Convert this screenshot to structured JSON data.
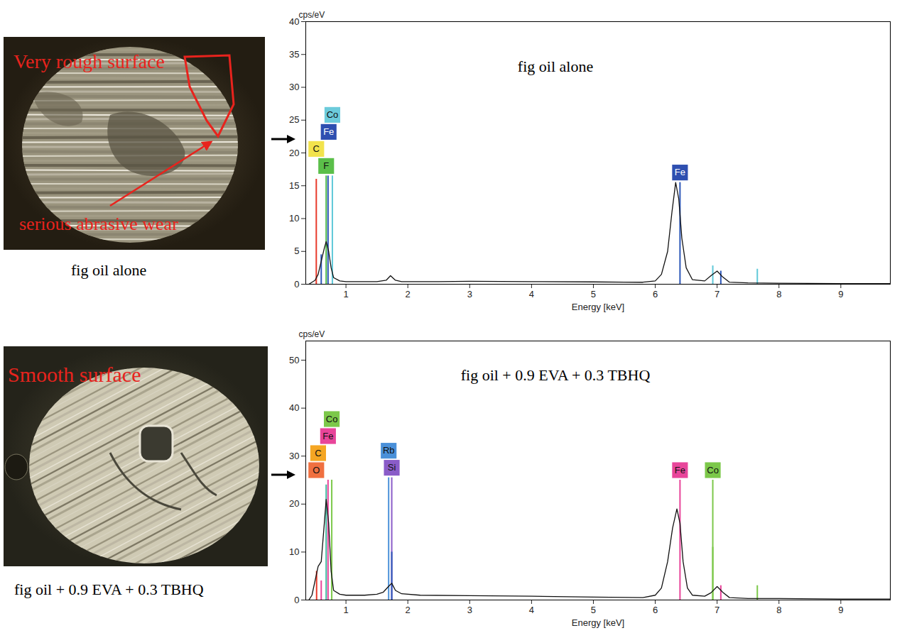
{
  "chart_data": [
    {
      "type": "line",
      "title": "fig oil alone",
      "x_label": "Energy [keV]",
      "y_label": "cps/eV",
      "xlim": [
        0.35,
        9.8
      ],
      "xticks": [
        1,
        2,
        3,
        4,
        5,
        6,
        7,
        8,
        9
      ],
      "ylim": [
        0,
        40
      ],
      "yticks": [
        0,
        5,
        10,
        15,
        20,
        25,
        30,
        35,
        40
      ],
      "grid": false,
      "x": [
        0.4,
        0.45,
        0.5,
        0.55,
        0.6,
        0.65,
        0.68,
        0.72,
        0.76,
        0.8,
        0.9,
        1.0,
        1.2,
        1.5,
        1.65,
        1.72,
        1.8,
        1.9,
        2.5,
        3.0,
        4.0,
        5.0,
        5.5,
        5.8,
        6.0,
        6.1,
        6.2,
        6.27,
        6.33,
        6.38,
        6.43,
        6.5,
        6.6,
        6.8,
        6.9,
        7.0,
        7.08,
        7.2,
        7.5,
        8.0,
        9.0,
        9.8
      ],
      "series": [
        {
          "color": "#111111",
          "values": [
            0,
            0.3,
            0.6,
            1.5,
            3.5,
            5.5,
            6.5,
            5,
            2.5,
            1,
            0.5,
            0.4,
            0.4,
            0.4,
            0.6,
            1.3,
            0.6,
            0.4,
            0.4,
            0.45,
            0.4,
            0.35,
            0.3,
            0.3,
            0.5,
            1.5,
            5,
            11,
            15.5,
            13,
            7,
            2.5,
            0.7,
            0.5,
            1.3,
            2,
            1.2,
            0.3,
            0.2,
            0.15,
            0.1,
            0.1
          ]
        }
      ],
      "element_lines": {
        "energy": [
          0.52,
          0.6,
          0.68,
          0.71,
          0.78,
          6.4,
          6.93,
          7.06,
          7.65
        ],
        "height": [
          16,
          4.5,
          16.5,
          16.5,
          16.5,
          15.5,
          2.8,
          2,
          2.3
        ],
        "colors": [
          "#e8392a",
          "#2e58b8",
          "#4bb84a",
          "#2e58b8",
          "#5fc8d8",
          "#2e58b8",
          "#5fc8d8",
          "#2e58b8",
          "#5fc8d8"
        ]
      },
      "element_labels": [
        {
          "label": "F",
          "energy": 0.68,
          "color": "#5bbf4a"
        },
        {
          "label": "C",
          "energy": 0.52,
          "color": "#f2e34c"
        },
        {
          "label": "Fe",
          "energy": 0.72,
          "color": "#2e4fb0"
        },
        {
          "label": "Co",
          "energy": 0.78,
          "color": "#6ccbdb"
        },
        {
          "label": "Fe",
          "energy": 6.4,
          "color": "#2e4fb0"
        }
      ]
    },
    {
      "type": "line",
      "title": "fig oil + 0.9 EVA + 0.3 TBHQ",
      "x_label": "Energy [keV]",
      "y_label": "cps/eV",
      "xlim": [
        0.35,
        9.8
      ],
      "xticks": [
        1,
        2,
        3,
        4,
        5,
        6,
        7,
        8,
        9
      ],
      "ylim": [
        0,
        54
      ],
      "yticks": [
        0,
        10,
        20,
        30,
        40,
        50
      ],
      "grid": false,
      "x": [
        0.4,
        0.45,
        0.5,
        0.55,
        0.6,
        0.65,
        0.68,
        0.72,
        0.76,
        0.8,
        0.9,
        1.0,
        1.3,
        1.5,
        1.6,
        1.7,
        1.74,
        1.8,
        1.9,
        2.2,
        3.0,
        4.0,
        5.0,
        5.8,
        6.0,
        6.1,
        6.2,
        6.28,
        6.35,
        6.4,
        6.45,
        6.52,
        6.6,
        6.8,
        6.9,
        7.0,
        7.1,
        7.2,
        7.5,
        8.0,
        9.0,
        9.8
      ],
      "series": [
        {
          "color": "#111111",
          "values": [
            0,
            1,
            4,
            7,
            8,
            16,
            21,
            16,
            6,
            2,
            1.2,
            1.0,
            1.0,
            1.2,
            1.6,
            3,
            3.5,
            2,
            1.3,
            1.0,
            0.9,
            0.8,
            0.6,
            0.5,
            1,
            2.5,
            8,
            15,
            19,
            16,
            8,
            2.5,
            1,
            0.8,
            1.5,
            2.8,
            1.5,
            0.5,
            0.3,
            0.3,
            0.2,
            0.2
          ]
        }
      ],
      "element_lines": {
        "energy": [
          0.525,
          0.6,
          0.68,
          0.71,
          0.77,
          1.69,
          1.74,
          1.74,
          6.4,
          6.93,
          6.93,
          7.06,
          7.65
        ],
        "height": [
          6,
          4,
          24,
          25,
          25,
          25.5,
          25.5,
          10,
          25,
          25,
          11,
          3,
          3
        ],
        "colors": [
          "#e8392a",
          "#e8459a",
          "#3fb8a0",
          "#e8459a",
          "#7cc84a",
          "#4a90d9",
          "#8a5cc8",
          "#2e58b8",
          "#e8459a",
          "#7cc84a",
          "#7cc84a",
          "#e8459a",
          "#7cc84a"
        ]
      },
      "element_labels": [
        {
          "label": "O",
          "energy": 0.52,
          "color": "#f07040"
        },
        {
          "label": "C",
          "energy": 0.55,
          "color": "#f5a623"
        },
        {
          "label": "Fe",
          "energy": 0.71,
          "color": "#e8459a"
        },
        {
          "label": "Co",
          "energy": 0.77,
          "color": "#7cc84a"
        },
        {
          "label": "Si",
          "energy": 1.74,
          "color": "#8a5cc8"
        },
        {
          "label": "Rb",
          "energy": 1.69,
          "color": "#4a90d9"
        },
        {
          "label": "Fe",
          "energy": 6.4,
          "color": "#e8459a"
        },
        {
          "label": "Co",
          "energy": 6.93,
          "color": "#7cc84a"
        }
      ]
    }
  ],
  "images": [
    {
      "caption": "fig oil alone",
      "annotations": [
        "Very rough surface",
        "serious abrasive wear"
      ]
    },
    {
      "caption": "fig oil + 0.9 EVA + 0.3 TBHQ",
      "annotations": [
        "Smooth surface"
      ]
    }
  ]
}
